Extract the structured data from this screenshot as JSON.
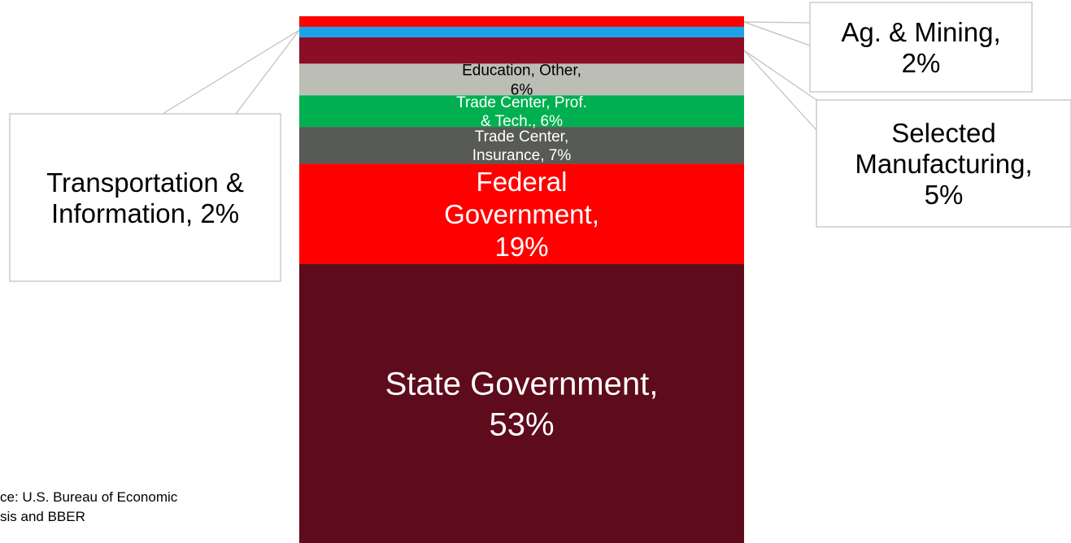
{
  "chart_data": {
    "type": "bar",
    "stacked": true,
    "series": [
      {
        "name": "State Government",
        "value": 53,
        "label_lines": [
          "State Government,",
          "53%"
        ],
        "color": "#5e0b1c",
        "text_color": "#ffffff"
      },
      {
        "name": "Federal Government",
        "value": 19,
        "label_lines": [
          "Federal",
          "Government,",
          "19%"
        ],
        "color": "#ff0000",
        "text_color": "#ffffff"
      },
      {
        "name": "Trade Center, Insurance",
        "value": 7,
        "label_lines": [
          "Trade Center,",
          "Insurance, 7%"
        ],
        "color": "#575a55",
        "text_color": "#ffffff"
      },
      {
        "name": "Trade Center, Prof. & Tech.",
        "value": 6,
        "label_lines": [
          "Trade Center, Prof.",
          "& Tech., 6%"
        ],
        "color": "#00b050",
        "text_color": "#ffffff"
      },
      {
        "name": "Education, Other",
        "value": 6,
        "label_lines": [
          "Education, Other,",
          "6%"
        ],
        "color": "#bcbeb6",
        "text_color": "#000000"
      },
      {
        "name": "Selected Manufacturing",
        "value": 5,
        "label_lines": [
          "Selected",
          "Manufacturing,",
          "5%"
        ],
        "color": "#8b0e26",
        "text_color": "#000000"
      },
      {
        "name": "Transportation & Information",
        "value": 2,
        "label_lines": [
          "Transportation &",
          "Information, 2%"
        ],
        "color": "#1aa3e8",
        "text_color": "#000000"
      },
      {
        "name": "Ag. & Mining",
        "value": 2,
        "label_lines": [
          "Ag. & Mining,",
          "2%"
        ],
        "color": "#ff0000",
        "text_color": "#000000"
      }
    ],
    "source_lines": [
      "ce:  U.S. Bureau of Economic",
      "sis and BBER"
    ]
  }
}
